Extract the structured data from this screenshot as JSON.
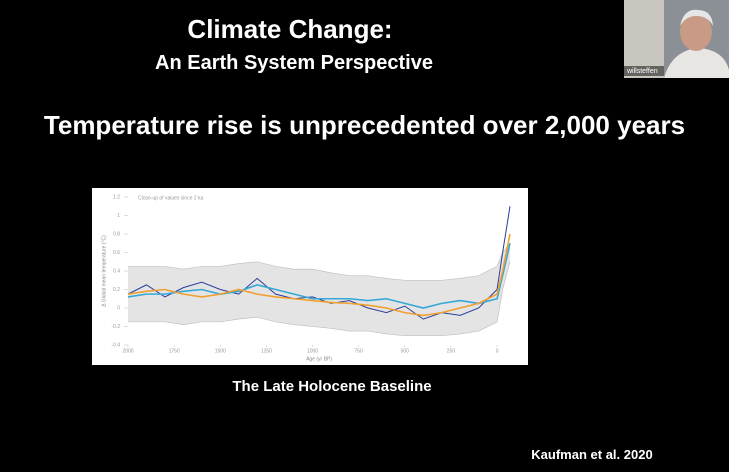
{
  "slide": {
    "title": "Climate Change:",
    "subtitle": "An Earth System Perspective",
    "headline": "Temperature rise is unprecedented over 2,000 years",
    "caption": "The Late Holocene Baseline",
    "citation": "Kaufman et al. 2020"
  },
  "participant": {
    "name": "willsteffen"
  },
  "chart_data": {
    "type": "line",
    "title": "Close-up of values since 2 ka",
    "x_label": "Age (yr BP)",
    "y_label": "Δ Global mean temperature (°C)",
    "x": [
      2000,
      1900,
      1800,
      1700,
      1600,
      1500,
      1400,
      1300,
      1200,
      1100,
      1000,
      900,
      800,
      700,
      600,
      500,
      400,
      300,
      200,
      100,
      0,
      -30,
      -70
    ],
    "series": [
      {
        "color": "#b9b9b9",
        "values": [
          0.45,
          0.45,
          0.45,
          0.42,
          0.45,
          0.45,
          0.48,
          0.5,
          0.45,
          0.42,
          0.42,
          0.38,
          0.35,
          0.35,
          0.32,
          0.3,
          0.3,
          0.3,
          0.32,
          0.35,
          0.45,
          0.6,
          0.7
        ]
      },
      {
        "color": "#b9b9b9",
        "values": [
          -0.15,
          -0.15,
          -0.15,
          -0.18,
          -0.15,
          -0.15,
          -0.12,
          -0.1,
          -0.15,
          -0.18,
          -0.2,
          -0.22,
          -0.25,
          -0.25,
          -0.28,
          -0.3,
          -0.3,
          -0.3,
          -0.28,
          -0.25,
          -0.15,
          0.2,
          0.5
        ]
      },
      {
        "color": "#2a3d9a",
        "values": [
          0.15,
          0.25,
          0.12,
          0.22,
          0.28,
          0.2,
          0.15,
          0.32,
          0.15,
          0.1,
          0.12,
          0.05,
          0.08,
          0.0,
          -0.05,
          0.02,
          -0.12,
          -0.05,
          -0.08,
          0.0,
          0.2,
          0.6,
          1.1
        ]
      },
      {
        "color": "#35a8d8",
        "values": [
          0.12,
          0.15,
          0.15,
          0.18,
          0.2,
          0.15,
          0.18,
          0.25,
          0.2,
          0.15,
          0.1,
          0.1,
          0.1,
          0.08,
          0.1,
          0.05,
          0.0,
          0.05,
          0.08,
          0.05,
          0.1,
          0.35,
          0.7
        ]
      },
      {
        "color": "#f0a030",
        "values": [
          0.15,
          0.18,
          0.2,
          0.15,
          0.12,
          0.15,
          0.2,
          0.15,
          0.12,
          0.1,
          0.08,
          0.06,
          0.05,
          0.03,
          0.0,
          -0.05,
          -0.08,
          -0.05,
          0.0,
          0.05,
          0.15,
          0.4,
          0.8
        ]
      }
    ],
    "xlim": [
      2000,
      -70
    ],
    "ylim": [
      -0.4,
      1.2
    ],
    "xticks": [
      2000,
      1750,
      1500,
      1250,
      1000,
      750,
      500,
      250,
      0
    ],
    "yticks": [
      1.2,
      1.0,
      0.8,
      0.6,
      0.4,
      0.2,
      0.0,
      -0.2,
      -0.4
    ]
  }
}
